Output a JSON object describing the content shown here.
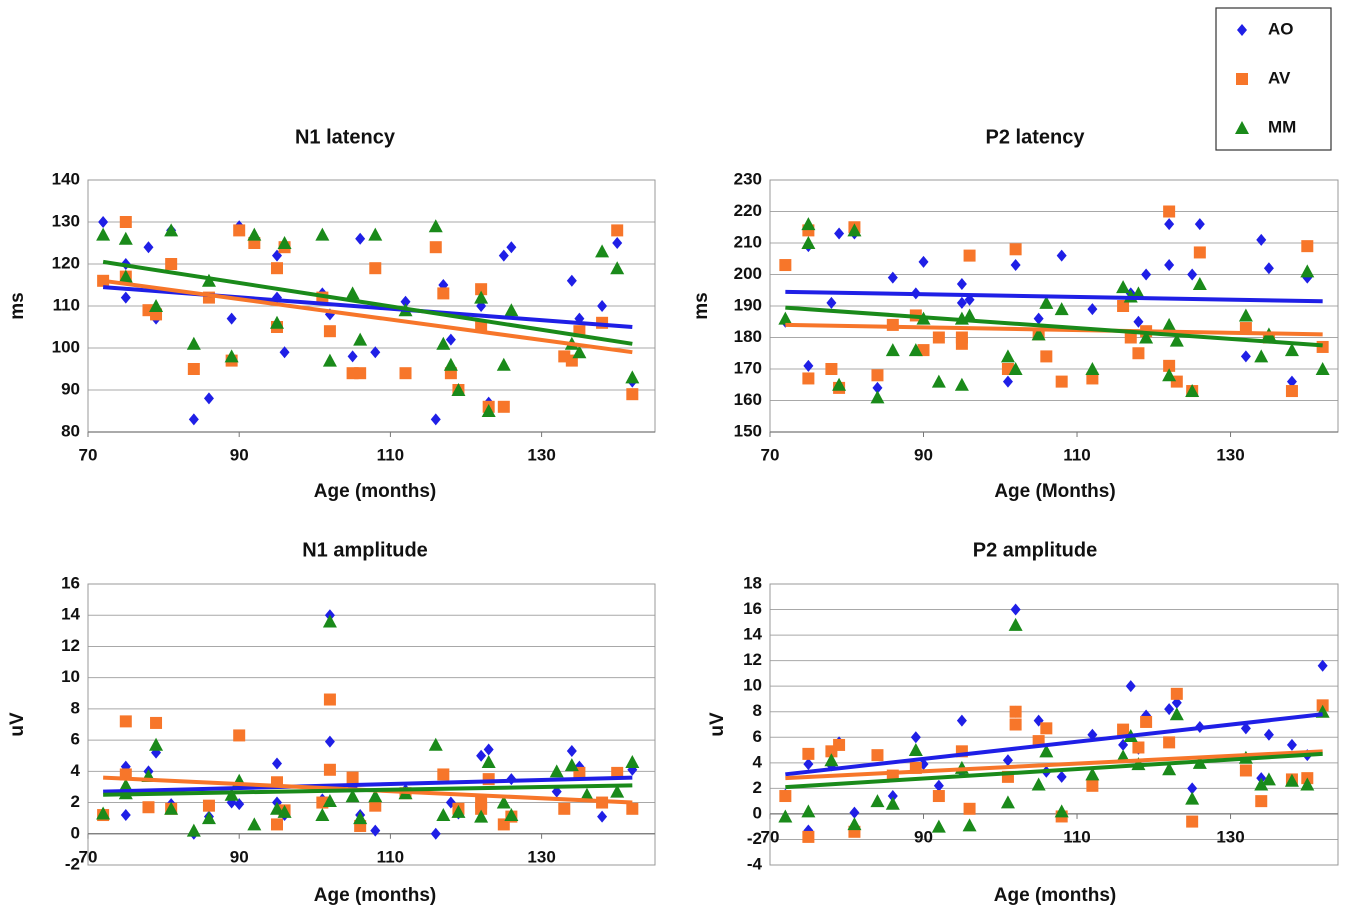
{
  "chart_data": [
    {
      "type": "scatter",
      "title": "N1 latency",
      "xlabel": "Age (months)",
      "ylabel": "ms",
      "xlim": [
        70,
        145
      ],
      "xticks": [
        70,
        90,
        110,
        130
      ],
      "ylim": [
        80,
        140
      ],
      "yticks": [
        80,
        90,
        100,
        110,
        120,
        130,
        140
      ],
      "grid": true,
      "series": [
        {
          "name": "AO",
          "color": "#1f1fe6",
          "marker": "diamond",
          "x": [
            72,
            75,
            75,
            78,
            79,
            81,
            84,
            86,
            89,
            90,
            95,
            95,
            96,
            101,
            102,
            105,
            106,
            108,
            112,
            116,
            117,
            118,
            122,
            123,
            125,
            126,
            134,
            135,
            138,
            140,
            142
          ],
          "values": [
            130,
            120,
            112,
            124,
            107,
            128,
            83,
            88,
            107,
            129,
            122,
            112,
            99,
            113,
            108,
            98,
            126,
            99,
            111,
            83,
            115,
            102,
            110,
            87,
            122,
            124,
            116,
            107,
            110,
            125,
            92
          ],
          "trend_x": [
            72,
            142
          ],
          "trend": [
            114.5,
            105
          ]
        },
        {
          "name": "AV",
          "color": "#f7762a",
          "marker": "square",
          "x": [
            72,
            75,
            75,
            78,
            79,
            81,
            84,
            86,
            89,
            90,
            92,
            95,
            95,
            96,
            101,
            102,
            105,
            106,
            108,
            112,
            116,
            117,
            118,
            119,
            122,
            122,
            123,
            125,
            133,
            134,
            135,
            138,
            140,
            142
          ],
          "values": [
            116,
            130,
            117,
            109,
            108,
            120,
            95,
            112,
            97,
            128,
            125,
            105,
            119,
            124,
            112,
            104,
            94,
            94,
            119,
            94,
            124,
            113,
            94,
            90,
            114,
            105,
            86,
            86,
            98,
            97,
            104,
            106,
            128,
            89
          ],
          "trend_x": [
            72,
            142
          ],
          "trend": [
            116,
            99
          ]
        },
        {
          "name": "MM",
          "color": "#1a8a1a",
          "marker": "triangle",
          "x": [
            72,
            75,
            75,
            79,
            81,
            84,
            86,
            89,
            92,
            95,
            96,
            101,
            102,
            105,
            106,
            108,
            112,
            116,
            117,
            118,
            119,
            122,
            123,
            125,
            126,
            134,
            135,
            138,
            140,
            142
          ],
          "values": [
            127,
            126,
            117,
            110,
            128,
            101,
            116,
            98,
            127,
            106,
            125,
            127,
            97,
            113,
            102,
            127,
            109,
            129,
            101,
            96,
            90,
            112,
            85,
            96,
            109,
            101,
            99,
            123,
            119,
            93
          ],
          "trend_x": [
            72,
            142
          ],
          "trend": [
            120.5,
            101
          ]
        }
      ]
    },
    {
      "type": "scatter",
      "title": "P2 latency",
      "xlabel": "Age (Months)",
      "ylabel": "ms",
      "xlim": [
        70,
        144
      ],
      "xticks": [
        70,
        90,
        110,
        130
      ],
      "ylim": [
        150,
        230
      ],
      "yticks": [
        150,
        160,
        170,
        180,
        190,
        200,
        210,
        220,
        230
      ],
      "grid": true,
      "series": [
        {
          "name": "AO",
          "color": "#1f1fe6",
          "marker": "diamond",
          "x": [
            72,
            75,
            75,
            78,
            79,
            81,
            84,
            86,
            89,
            90,
            95,
            95,
            96,
            101,
            102,
            105,
            108,
            112,
            116,
            117,
            118,
            119,
            122,
            122,
            125,
            126,
            132,
            134,
            135,
            138,
            140
          ],
          "values": [
            185,
            209,
            171,
            191,
            213,
            213,
            164,
            199,
            194,
            204,
            197,
            191,
            192,
            166,
            203,
            186,
            206,
            189,
            190,
            194,
            185,
            200,
            216,
            203,
            200,
            216,
            174,
            211,
            202,
            166,
            199
          ],
          "trend_x": [
            72,
            142
          ],
          "trend": [
            194.5,
            191.5
          ]
        },
        {
          "name": "AV",
          "color": "#f7762a",
          "marker": "square",
          "x": [
            72,
            75,
            75,
            78,
            79,
            81,
            84,
            86,
            89,
            90,
            92,
            95,
            95,
            96,
            101,
            102,
            105,
            106,
            108,
            112,
            116,
            117,
            118,
            119,
            122,
            122,
            123,
            125,
            126,
            132,
            135,
            138,
            140,
            142
          ],
          "values": [
            203,
            167,
            214,
            170,
            164,
            215,
            168,
            184,
            187,
            176,
            180,
            178,
            180,
            206,
            170,
            208,
            181,
            174,
            166,
            167,
            190,
            180,
            175,
            182,
            220,
            171,
            166,
            163,
            207,
            183,
            180,
            163,
            209,
            177
          ],
          "trend_x": [
            72,
            142
          ],
          "trend": [
            184,
            181
          ]
        },
        {
          "name": "MM",
          "color": "#1a8a1a",
          "marker": "triangle",
          "x": [
            72,
            75,
            75,
            79,
            81,
            84,
            86,
            89,
            90,
            92,
            95,
            95,
            96,
            101,
            102,
            105,
            106,
            108,
            112,
            116,
            117,
            118,
            119,
            122,
            122,
            123,
            125,
            126,
            132,
            134,
            135,
            138,
            140,
            142
          ],
          "values": [
            186,
            216,
            210,
            165,
            214,
            161,
            176,
            176,
            186,
            166,
            165,
            186,
            187,
            174,
            170,
            181,
            191,
            189,
            170,
            196,
            193,
            194,
            180,
            184,
            168,
            179,
            163,
            197,
            187,
            174,
            181,
            176,
            201,
            170
          ],
          "trend_x": [
            72,
            142
          ],
          "trend": [
            189.5,
            177.5
          ]
        }
      ]
    },
    {
      "type": "scatter",
      "title": "N1 amplitude",
      "xlabel": "Age (months)",
      "ylabel": "uV",
      "xlim": [
        70,
        145
      ],
      "xticks": [
        70,
        90,
        110,
        130
      ],
      "ylim": [
        -2,
        16
      ],
      "yticks": [
        -2,
        0,
        2,
        4,
        6,
        8,
        10,
        12,
        14,
        16
      ],
      "grid": true,
      "x_axis_at": 0,
      "series": [
        {
          "name": "AO",
          "color": "#1f1fe6",
          "marker": "diamond",
          "x": [
            72,
            75,
            75,
            78,
            79,
            81,
            84,
            86,
            89,
            90,
            95,
            95,
            96,
            101,
            102,
            102,
            105,
            106,
            108,
            112,
            116,
            118,
            119,
            122,
            123,
            126,
            132,
            134,
            135,
            138,
            142
          ],
          "values": [
            1.3,
            1.2,
            4.3,
            4.0,
            5.2,
            1.9,
            0,
            1.1,
            2.0,
            1.9,
            4.5,
            2.0,
            1.2,
            2.2,
            14,
            5.9,
            3.0,
            1.2,
            0.2,
            2.8,
            0,
            2.0,
            1.3,
            5.0,
            5.4,
            3.5,
            2.7,
            5.3,
            4.3,
            1.1,
            4.1
          ],
          "trend_x": [
            72,
            142
          ],
          "trend": [
            2.7,
            3.6
          ]
        },
        {
          "name": "AV",
          "color": "#f7762a",
          "marker": "square",
          "x": [
            72,
            75,
            75,
            78,
            79,
            81,
            86,
            90,
            95,
            95,
            96,
            101,
            102,
            102,
            105,
            106,
            108,
            112,
            117,
            119,
            122,
            122,
            123,
            125,
            126,
            133,
            135,
            138,
            140,
            142
          ],
          "values": [
            1.2,
            7.2,
            3.8,
            1.7,
            7.1,
            1.6,
            1.8,
            6.3,
            3.3,
            0.6,
            1.5,
            2.0,
            8.6,
            4.1,
            3.6,
            0.5,
            1.8,
            2.6,
            3.8,
            1.6,
            2.0,
            1.6,
            3.5,
            0.6,
            1.1,
            1.6,
            3.9,
            2.0,
            3.9,
            1.6
          ],
          "trend_x": [
            72,
            142
          ],
          "trend": [
            3.6,
            2.0
          ]
        },
        {
          "name": "MM",
          "color": "#1a8a1a",
          "marker": "triangle",
          "x": [
            72,
            75,
            75,
            78,
            79,
            81,
            84,
            86,
            89,
            90,
            92,
            95,
            96,
            101,
            102,
            102,
            105,
            106,
            108,
            112,
            116,
            117,
            119,
            122,
            123,
            125,
            126,
            132,
            134,
            136,
            140,
            142
          ],
          "values": [
            1.3,
            2.6,
            3.1,
            3.7,
            5.7,
            1.6,
            0.2,
            1.0,
            2.5,
            3.4,
            0.6,
            1.6,
            1.4,
            1.2,
            13.6,
            2.1,
            2.4,
            1.0,
            2.4,
            2.6,
            5.7,
            1.2,
            1.4,
            1.1,
            4.6,
            2.0,
            1.2,
            4.0,
            4.4,
            2.5,
            2.7,
            4.6
          ],
          "trend_x": [
            72,
            142
          ],
          "trend": [
            2.5,
            3.1
          ]
        }
      ]
    },
    {
      "type": "scatter",
      "title": "P2 amplitude",
      "xlabel": "Age (months)",
      "ylabel": "uV",
      "xlim": [
        70,
        144
      ],
      "xticks": [
        70,
        90,
        110,
        130
      ],
      "ylim": [
        -4,
        18
      ],
      "yticks": [
        -4,
        -2,
        0,
        2,
        4,
        6,
        8,
        10,
        12,
        14,
        16,
        18
      ],
      "grid": true,
      "x_axis_at": 0,
      "series": [
        {
          "name": "AO",
          "color": "#1f1fe6",
          "marker": "diamond",
          "x": [
            72,
            75,
            75,
            78,
            79,
            81,
            86,
            89,
            90,
            92,
            95,
            95,
            101,
            102,
            102,
            105,
            106,
            108,
            112,
            116,
            117,
            118,
            119,
            122,
            123,
            125,
            126,
            132,
            134,
            135,
            138,
            140,
            142
          ],
          "values": [
            1.5,
            -1.3,
            3.9,
            3.8,
            5.6,
            0.1,
            1.4,
            6.0,
            3.9,
            2.2,
            7.3,
            3.3,
            4.2,
            16,
            8,
            7.3,
            3.3,
            2.9,
            6.2,
            5.4,
            10,
            5.1,
            7.7,
            8.2,
            8.7,
            2.0,
            6.8,
            6.7,
            2.8,
            6.2,
            5.4,
            4.6,
            11.6
          ],
          "trend_x": [
            72,
            142
          ],
          "trend": [
            3.1,
            7.8
          ]
        },
        {
          "name": "AV",
          "color": "#f7762a",
          "marker": "square",
          "x": [
            72,
            75,
            75,
            78,
            79,
            81,
            84,
            86,
            89,
            92,
            95,
            96,
            101,
            102,
            102,
            105,
            106,
            108,
            112,
            116,
            118,
            119,
            122,
            123,
            125,
            132,
            134,
            138,
            140,
            142
          ],
          "values": [
            1.4,
            -1.8,
            4.7,
            4.9,
            5.4,
            -1.4,
            4.6,
            3.0,
            3.6,
            1.4,
            4.9,
            0.4,
            2.9,
            8.0,
            7.0,
            5.7,
            6.7,
            -0.2,
            2.2,
            6.6,
            5.2,
            7.2,
            5.6,
            9.4,
            -0.6,
            3.4,
            1.0,
            2.7,
            2.8,
            8.5
          ],
          "trend_x": [
            72,
            142
          ],
          "trend": [
            2.8,
            4.9
          ]
        },
        {
          "name": "MM",
          "color": "#1a8a1a",
          "marker": "triangle",
          "x": [
            72,
            75,
            78,
            81,
            84,
            86,
            89,
            92,
            95,
            96,
            101,
            102,
            105,
            106,
            108,
            112,
            116,
            117,
            118,
            122,
            123,
            125,
            126,
            132,
            134,
            135,
            138,
            140,
            142
          ],
          "values": [
            -0.2,
            0.2,
            4.2,
            -0.8,
            1.0,
            0.8,
            5.0,
            -1.0,
            3.6,
            -0.9,
            0.9,
            14.8,
            2.3,
            4.9,
            0.2,
            3.1,
            4.5,
            6.1,
            3.9,
            3.5,
            7.8,
            1.2,
            4.0,
            4.4,
            2.3,
            2.7,
            2.6,
            2.3,
            8.0
          ],
          "trend_x": [
            72,
            142
          ],
          "trend": [
            2.1,
            4.7
          ]
        }
      ]
    }
  ]
}
